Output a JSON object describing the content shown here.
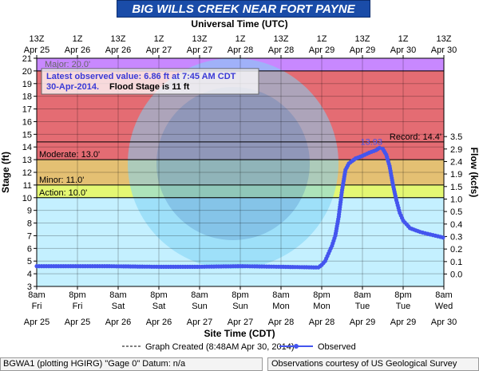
{
  "title": "BIG WILLS CREEK NEAR FORT PAYNE",
  "top_axis_title": "Universal Time (UTC)",
  "bottom_axis_title": "Site Time (CDT)",
  "left_axis_title": "Stage (ft)",
  "right_axis_title": "Flow (kcfs)",
  "note": {
    "line1": "Latest observed value: 6.86 ft at 7:45 AM CDT",
    "line2_date": "30-Apr-2014.",
    "line2_flood": "Flood Stage is 11 ft",
    "behind_label": "Major: 20.0'"
  },
  "legend": {
    "created": "Graph Created (8:48AM Apr 30, 2014)",
    "observed": "Observed"
  },
  "footer": {
    "left": "BGWA1 (plotting HGIRG) \"Gage 0\" Datum: n/a",
    "right": "Observations courtesy of US Geological Survey"
  },
  "chart_data": {
    "type": "line",
    "y_range": [
      3,
      21
    ],
    "y_ticks": [
      3,
      4,
      5,
      6,
      7,
      8,
      9,
      10,
      11,
      12,
      13,
      14,
      15,
      16,
      17,
      18,
      19,
      20,
      21
    ],
    "right_axis": {
      "ticks": [
        {
          "stage": 3.98,
          "label": "0.0"
        },
        {
          "stage": 4.96,
          "label": "0.1"
        },
        {
          "stage": 5.95,
          "label": "0.2"
        },
        {
          "stage": 6.94,
          "label": "0.3"
        },
        {
          "stage": 7.92,
          "label": "0.4"
        },
        {
          "stage": 8.91,
          "label": "0.5"
        },
        {
          "stage": 9.89,
          "label": "1.0"
        },
        {
          "stage": 10.88,
          "label": "1.5"
        },
        {
          "stage": 11.87,
          "label": "1.9"
        },
        {
          "stage": 12.85,
          "label": "2.4"
        },
        {
          "stage": 13.84,
          "label": "2.9"
        },
        {
          "stage": 14.82,
          "label": "3.5"
        }
      ]
    },
    "bottom_ticks": [
      {
        "top": "8am",
        "bottom": "Fri"
      },
      {
        "top": "8pm",
        "bottom": "Fri"
      },
      {
        "top": "8am",
        "bottom": "Sat"
      },
      {
        "top": "8pm",
        "bottom": "Sat"
      },
      {
        "top": "8am",
        "bottom": "Sun"
      },
      {
        "top": "8pm",
        "bottom": "Sun"
      },
      {
        "top": "8am",
        "bottom": "Mon"
      },
      {
        "top": "8pm",
        "bottom": "Mon"
      },
      {
        "top": "8am",
        "bottom": "Tue"
      },
      {
        "top": "8pm",
        "bottom": "Tue"
      },
      {
        "top": "8am",
        "bottom": "Wed"
      }
    ],
    "bottom_dates": [
      "Apr 25",
      "Apr 25",
      "Apr 26",
      "Apr 26",
      "Apr 27",
      "Apr 27",
      "Apr 28",
      "Apr 28",
      "Apr 29",
      "Apr 29",
      "Apr 30"
    ],
    "top_ticks": [
      {
        "top": "13Z",
        "bottom": "Apr 25"
      },
      {
        "top": "1Z",
        "bottom": "Apr 26"
      },
      {
        "top": "13Z",
        "bottom": "Apr 26"
      },
      {
        "top": "1Z",
        "bottom": "Apr 27"
      },
      {
        "top": "13Z",
        "bottom": "Apr 27"
      },
      {
        "top": "1Z",
        "bottom": "Apr 28"
      },
      {
        "top": "13Z",
        "bottom": "Apr 28"
      },
      {
        "top": "1Z",
        "bottom": "Apr 29"
      },
      {
        "top": "13Z",
        "bottom": "Apr 29"
      },
      {
        "top": "1Z",
        "bottom": "Apr 30"
      },
      {
        "top": "13Z",
        "bottom": "Apr 30"
      }
    ],
    "flood_categories": [
      {
        "name": "Action",
        "label": "Action: 10.0'",
        "from": 10,
        "to": 11,
        "color": "#ffff00"
      },
      {
        "name": "Minor",
        "label": "Minor: 11.0'",
        "from": 11,
        "to": 13,
        "color": "#ff9900"
      },
      {
        "name": "Moderate",
        "label": "Moderate: 13.0'",
        "from": 13,
        "to": 20,
        "color": "#ff0000"
      },
      {
        "name": "Major",
        "label": "",
        "from": 20,
        "to": 21,
        "color": "#cc33ff"
      }
    ],
    "record": {
      "label": "Record: 14.4'",
      "value": 14.4
    },
    "peak_label": "13.93",
    "series": [
      {
        "color": "#4455ee",
        "points": [
          [
            "Apr 25 8am",
            4.6
          ],
          [
            "Apr 26 4am",
            4.6
          ],
          [
            "Apr 26 8pm",
            4.55
          ],
          [
            "Apr 27 8am",
            4.55
          ],
          [
            "Apr 27 8pm",
            4.6
          ],
          [
            "Apr 28 8am",
            4.55
          ],
          [
            "Apr 28 7pm",
            4.5
          ],
          [
            "Apr 28 8pm",
            4.7
          ],
          [
            "Apr 28 9pm",
            5.0
          ],
          [
            "Apr 28 10pm",
            5.6
          ],
          [
            "Apr 28 11pm",
            6.2
          ],
          [
            "Apr 29 12am",
            7.0
          ],
          [
            "Apr 29 1am",
            8.5
          ],
          [
            "Apr 29 2am",
            10.6
          ],
          [
            "Apr 29 3am",
            12.2
          ],
          [
            "Apr 29 4am",
            12.7
          ],
          [
            "Apr 29 5am",
            12.9
          ],
          [
            "Apr 29 6am",
            13.1
          ],
          [
            "Apr 29 8am",
            13.3
          ],
          [
            "Apr 29 10am",
            13.55
          ],
          [
            "Apr 29 12pm",
            13.75
          ],
          [
            "Apr 29 1pm",
            13.93
          ],
          [
            "Apr 29 2pm",
            13.85
          ],
          [
            "Apr 29 3pm",
            13.4
          ],
          [
            "Apr 29 4pm",
            12.5
          ],
          [
            "Apr 29 5pm",
            11.0
          ],
          [
            "Apr 29 6pm",
            9.8
          ],
          [
            "Apr 29 7pm",
            8.8
          ],
          [
            "Apr 29 8pm",
            8.2
          ],
          [
            "Apr 29 10pm",
            7.6
          ],
          [
            "Apr 30 1am",
            7.3
          ],
          [
            "Apr 30 4am",
            7.1
          ],
          [
            "Apr 30 7:45am",
            6.86
          ]
        ]
      }
    ]
  }
}
